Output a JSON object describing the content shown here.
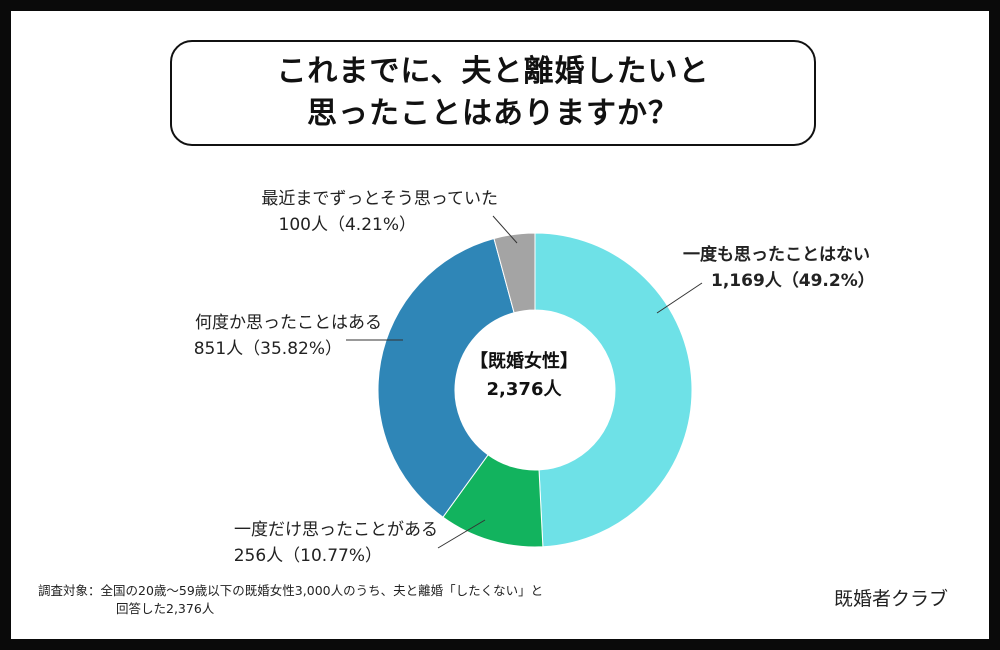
{
  "title": {
    "line1": "これまでに、夫と離婚したいと",
    "line2": "思ったことはありますか？"
  },
  "center_label": {
    "line1": "【既婚女性】",
    "line2": "2,376人"
  },
  "chart_data": {
    "type": "pie",
    "donut": true,
    "categories": [
      "一度も思ったことはない",
      "一度だけ思ったことがある",
      "何度か思ったことはある",
      "最近までずっとそう思っていた"
    ],
    "values": [
      1169,
      256,
      851,
      100
    ],
    "percent": [
      49.2,
      10.77,
      35.82,
      4.21
    ],
    "colors": [
      "#6ee1e7",
      "#12b35e",
      "#2f86b7",
      "#a4a4a4"
    ],
    "value_labels": [
      "1,169人（49.2%）",
      "256人（10.77%）",
      "851人（35.82%）",
      "100人（4.21%）"
    ]
  },
  "footnote": {
    "line1": "調査対象：全国の20歳〜59歳以下の既婚女性3,000人のうち、夫と離婚「したくない」と",
    "line2": "回答した2,376人"
  },
  "brand": "既婚者クラブ"
}
